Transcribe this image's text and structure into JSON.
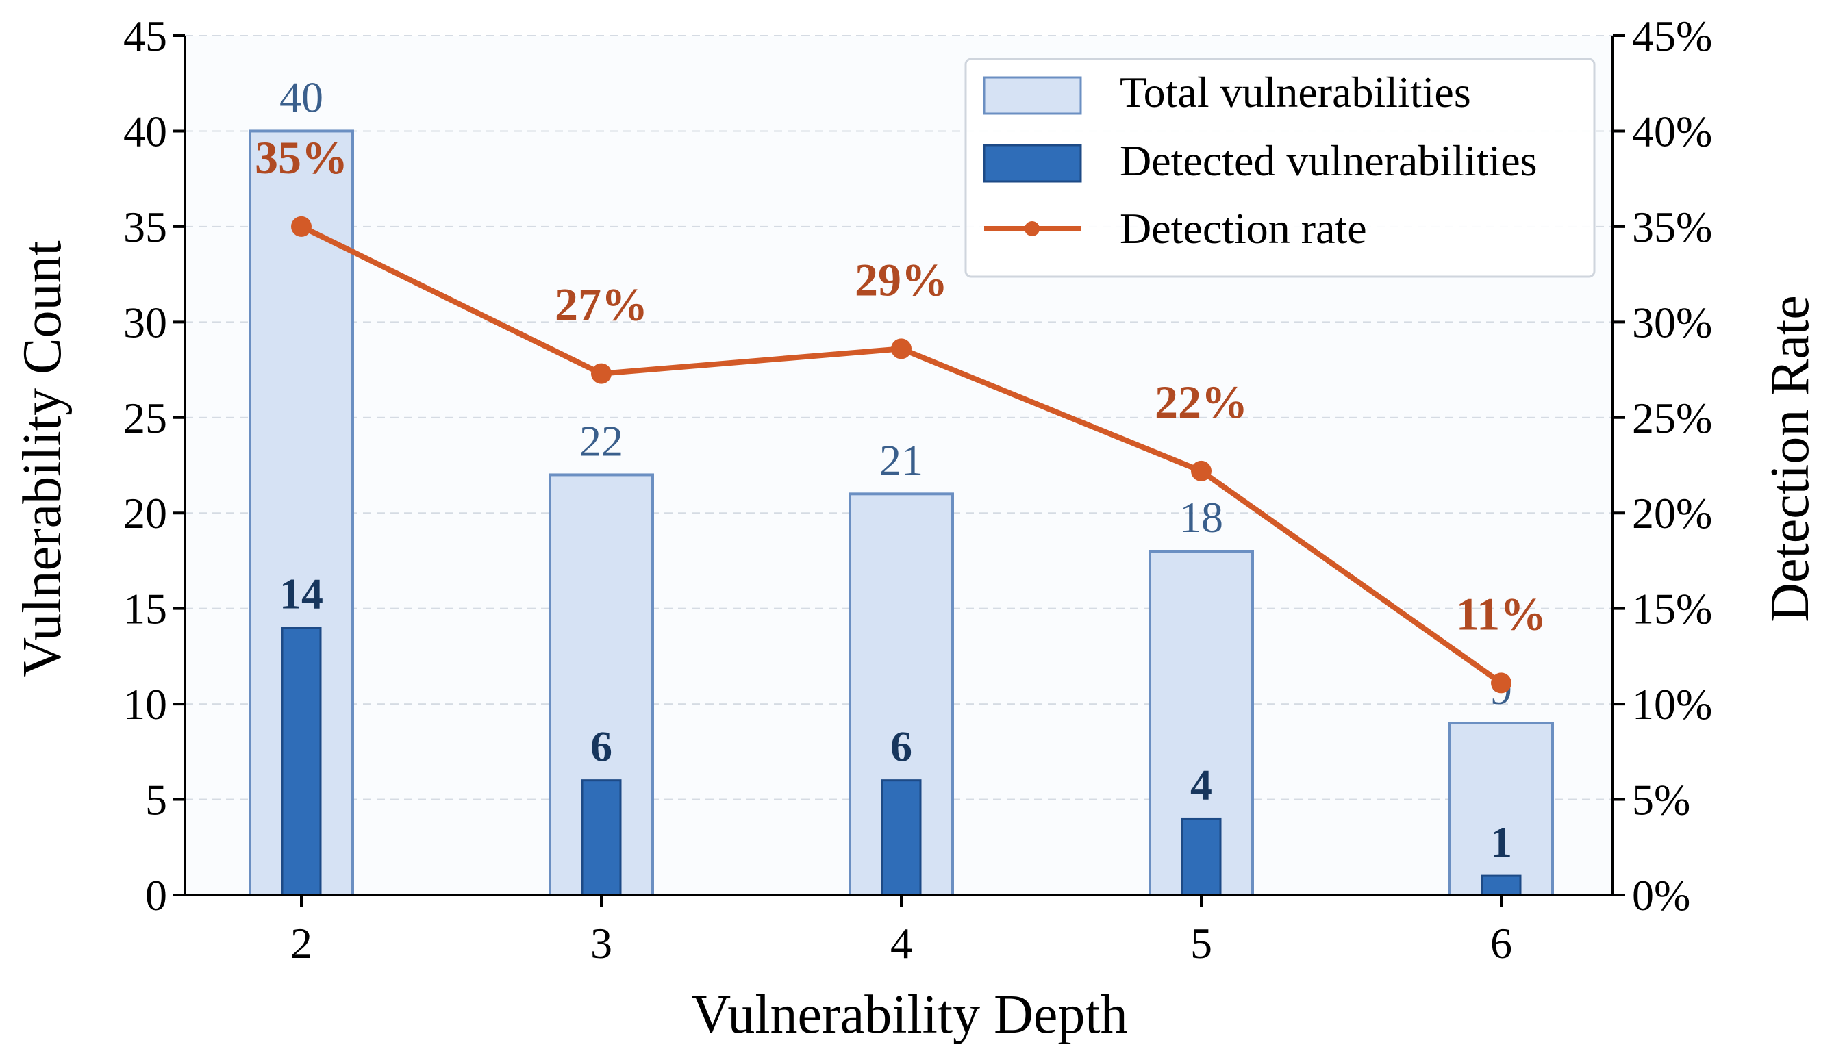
{
  "chart_data": {
    "type": "bar",
    "title": "",
    "xlabel": "Vulnerability Depth",
    "ylabel": "Vulnerability Count",
    "y2label": "Detection Rate",
    "categories": [
      "2",
      "3",
      "4",
      "5",
      "6"
    ],
    "ylim": [
      0,
      45
    ],
    "y2lim": [
      0,
      45
    ],
    "yticks": [
      "0",
      "5",
      "10",
      "15",
      "20",
      "25",
      "30",
      "35",
      "40",
      "45"
    ],
    "y2ticks": [
      "0%",
      "5%",
      "10%",
      "15%",
      "20%",
      "25%",
      "30%",
      "35%",
      "40%",
      "45%"
    ],
    "grid": "horizontal dashed",
    "legend_position": "top-right",
    "series": [
      {
        "name": "Total vulnerabilities",
        "kind": "bar",
        "values": [
          40,
          22,
          21,
          18,
          9
        ],
        "labels": [
          "40",
          "22",
          "21",
          "18",
          "9"
        ],
        "color": "#d6e2f4",
        "edge_color": "#6b8fc2"
      },
      {
        "name": "Detected vulnerabilities",
        "kind": "bar",
        "values": [
          14,
          6,
          6,
          4,
          1
        ],
        "labels": [
          "14",
          "6",
          "6",
          "4",
          "1"
        ],
        "color": "#2f6db8",
        "edge_color": "#1d4a86"
      },
      {
        "name": "Detection rate",
        "kind": "line",
        "axis": "right",
        "values": [
          35,
          27.3,
          28.6,
          22.2,
          11.1
        ],
        "labels": [
          "35%",
          "27%",
          "29%",
          "22%",
          "11%"
        ],
        "color": "#d35a27",
        "label_color": "#b04a22"
      }
    ],
    "colors": {
      "background": "#fafcfe",
      "grid": "#d5dbe3",
      "total_label": "#3a5f8c",
      "detected_label": "#17365d"
    }
  }
}
